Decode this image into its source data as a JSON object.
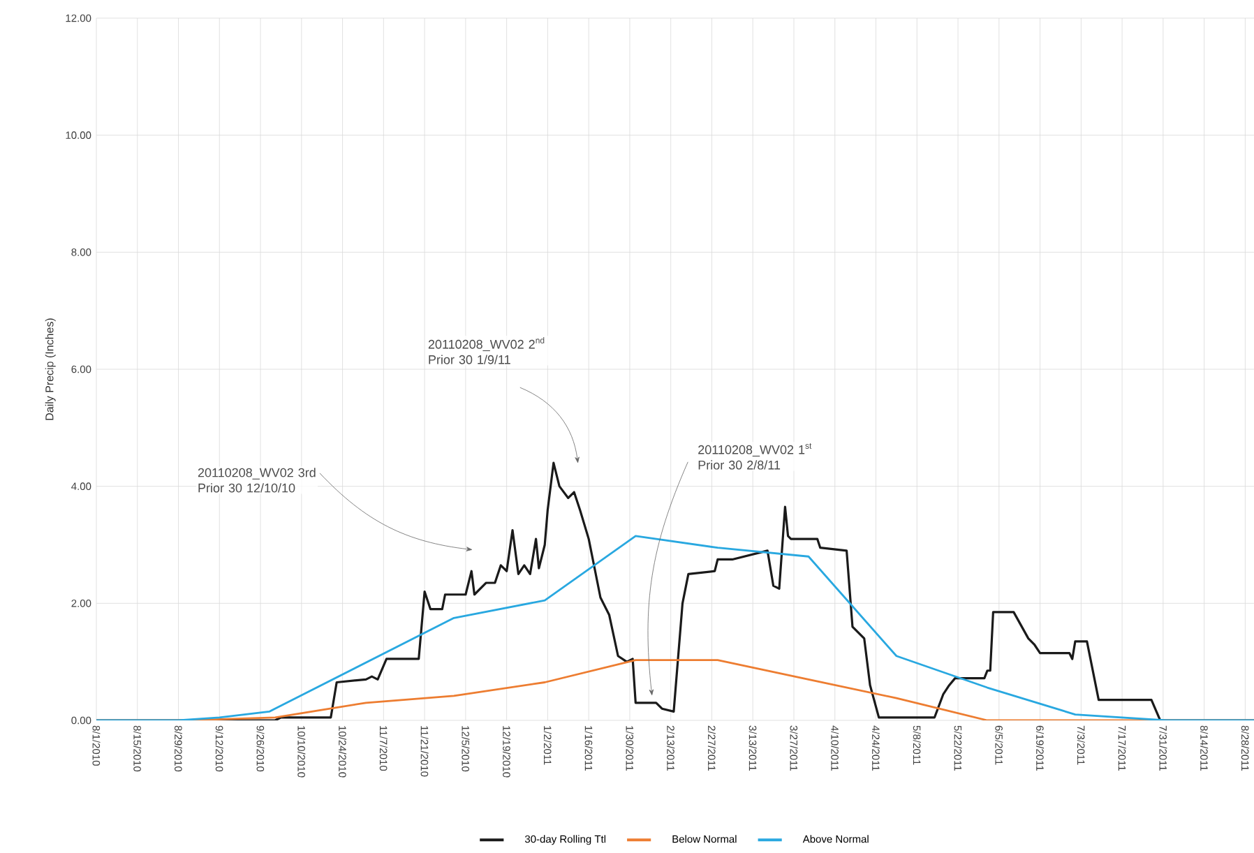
{
  "chart_data": {
    "type": "line",
    "ylabel": "Daily Precip (Inches)",
    "xlim": [
      "2010-08-01",
      "2011-08-31"
    ],
    "ylim": [
      0,
      12
    ],
    "yticks": [
      {
        "value": 0,
        "label": "0.00"
      },
      {
        "value": 2,
        "label": "2.00"
      },
      {
        "value": 4,
        "label": "4.00"
      },
      {
        "value": 6,
        "label": "6.00"
      },
      {
        "value": 8,
        "label": "8.00"
      },
      {
        "value": 10,
        "label": "10.00"
      },
      {
        "value": 12,
        "label": "12.00"
      }
    ],
    "xticks": [
      {
        "value": "2010-08-01",
        "label": "8/1/2010"
      },
      {
        "value": "2010-08-15",
        "label": "8/15/2010"
      },
      {
        "value": "2010-08-29",
        "label": "8/29/2010"
      },
      {
        "value": "2010-09-12",
        "label": "9/12/2010"
      },
      {
        "value": "2010-09-26",
        "label": "9/26/2010"
      },
      {
        "value": "2010-10-10",
        "label": "10/10/2010"
      },
      {
        "value": "2010-10-24",
        "label": "10/24/2010"
      },
      {
        "value": "2010-11-07",
        "label": "11/7/2010"
      },
      {
        "value": "2010-11-21",
        "label": "11/21/2010"
      },
      {
        "value": "2010-12-05",
        "label": "12/5/2010"
      },
      {
        "value": "2010-12-19",
        "label": "12/19/2010"
      },
      {
        "value": "2011-01-02",
        "label": "1/2/2011"
      },
      {
        "value": "2011-01-16",
        "label": "1/16/2011"
      },
      {
        "value": "2011-01-30",
        "label": "1/30/2011"
      },
      {
        "value": "2011-02-13",
        "label": "2/13/2011"
      },
      {
        "value": "2011-02-27",
        "label": "2/27/2011"
      },
      {
        "value": "2011-03-13",
        "label": "3/13/2011"
      },
      {
        "value": "2011-03-27",
        "label": "3/27/2011"
      },
      {
        "value": "2011-04-10",
        "label": "4/10/2011"
      },
      {
        "value": "2011-04-24",
        "label": "4/24/2011"
      },
      {
        "value": "2011-05-08",
        "label": "5/8/2011"
      },
      {
        "value": "2011-05-22",
        "label": "5/22/2011"
      },
      {
        "value": "2011-06-05",
        "label": "6/5/2011"
      },
      {
        "value": "2011-06-19",
        "label": "6/19/2011"
      },
      {
        "value": "2011-07-03",
        "label": "7/3/2011"
      },
      {
        "value": "2011-07-17",
        "label": "7/17/2011"
      },
      {
        "value": "2011-07-31",
        "label": "7/31/2011"
      },
      {
        "value": "2011-08-14",
        "label": "8/14/2011"
      },
      {
        "value": "2011-08-28",
        "label": "8/28/2011"
      }
    ],
    "grid": true,
    "legend": "bottom",
    "marker": "none",
    "line_style": "solid",
    "series": [
      {
        "name": "30-day Rolling Ttl",
        "color": "#1a1a1a",
        "x": [
          "2010-08-01",
          "2010-10-01",
          "2010-10-03",
          "2010-10-20",
          "2010-10-22",
          "2010-11-01",
          "2010-11-03",
          "2010-11-05",
          "2010-11-08",
          "2010-11-19",
          "2010-11-21",
          "2010-11-23",
          "2010-11-27",
          "2010-11-28",
          "2010-12-05",
          "2010-12-07",
          "2010-12-08",
          "2010-12-12",
          "2010-12-15",
          "2010-12-17",
          "2010-12-19",
          "2010-12-21",
          "2010-12-23",
          "2010-12-25",
          "2010-12-27",
          "2010-12-29",
          "2010-12-30",
          "2011-01-01",
          "2011-01-02",
          "2011-01-04",
          "2011-01-06",
          "2011-01-09",
          "2011-01-11",
          "2011-01-13",
          "2011-01-16",
          "2011-01-18",
          "2011-01-20",
          "2011-01-23",
          "2011-01-26",
          "2011-01-29",
          "2011-01-31",
          "2011-02-01",
          "2011-02-08",
          "2011-02-10",
          "2011-02-14",
          "2011-02-17",
          "2011-02-19",
          "2011-02-28",
          "2011-03-01",
          "2011-03-06",
          "2011-03-18",
          "2011-03-20",
          "2011-03-22",
          "2011-03-24",
          "2011-03-25",
          "2011-03-26",
          "2011-04-04",
          "2011-04-05",
          "2011-04-14",
          "2011-04-16",
          "2011-04-20",
          "2011-04-22",
          "2011-04-25",
          "2011-05-14",
          "2011-05-17",
          "2011-05-19",
          "2011-05-21",
          "2011-05-31",
          "2011-06-01",
          "2011-06-02",
          "2011-06-03",
          "2011-06-10",
          "2011-06-15",
          "2011-06-17",
          "2011-06-19",
          "2011-06-29",
          "2011-06-30",
          "2011-07-01",
          "2011-07-05",
          "2011-07-09",
          "2011-07-27",
          "2011-07-30",
          "2011-08-31"
        ],
        "values": [
          0,
          0,
          0.05,
          0.05,
          0.65,
          0.7,
          0.75,
          0.7,
          1.05,
          1.05,
          2.2,
          1.9,
          1.9,
          2.15,
          2.15,
          2.55,
          2.15,
          2.35,
          2.35,
          2.65,
          2.55,
          3.25,
          2.5,
          2.65,
          2.5,
          3.1,
          2.6,
          3.0,
          3.6,
          4.4,
          4.0,
          3.8,
          3.9,
          3.6,
          3.1,
          2.6,
          2.1,
          1.8,
          1.1,
          1.0,
          1.05,
          0.3,
          0.3,
          0.2,
          0.15,
          2.0,
          2.5,
          2.55,
          2.75,
          2.75,
          2.9,
          2.3,
          2.25,
          3.65,
          3.15,
          3.1,
          3.1,
          2.95,
          2.9,
          1.6,
          1.4,
          0.6,
          0.05,
          0.05,
          0.45,
          0.6,
          0.72,
          0.72,
          0.85,
          0.85,
          1.85,
          1.85,
          1.4,
          1.3,
          1.15,
          1.15,
          1.05,
          1.35,
          1.35,
          0.35,
          0.35,
          0.0,
          0.0
        ]
      },
      {
        "name": "Below Normal",
        "color": "#ed7d31",
        "x": [
          "2010-08-01",
          "2010-09-01",
          "2010-10-01",
          "2010-11-01",
          "2010-12-01",
          "2011-01-01",
          "2011-02-01",
          "2011-03-01",
          "2011-04-01",
          "2011-05-01",
          "2011-06-01",
          "2011-07-01",
          "2011-08-01",
          "2011-08-31"
        ],
        "values": [
          0,
          0,
          0.05,
          0.3,
          0.42,
          0.65,
          1.03,
          1.03,
          0.7,
          0.38,
          0,
          0,
          0,
          0
        ]
      },
      {
        "name": "Above Normal",
        "color": "#29a8e0",
        "x": [
          "2010-08-01",
          "2010-08-29",
          "2010-09-12",
          "2010-09-29",
          "2010-12-01",
          "2011-01-01",
          "2011-02-01",
          "2011-03-01",
          "2011-04-01",
          "2011-05-01",
          "2011-06-01",
          "2011-07-01",
          "2011-08-01",
          "2011-08-31"
        ],
        "values": [
          0,
          0,
          0.05,
          0.15,
          1.75,
          2.05,
          3.15,
          2.95,
          2.8,
          1.1,
          0.56,
          0.1,
          0,
          0
        ]
      }
    ],
    "annotations": [
      "20110208_WV02 3rd Prior 30 12/10/10",
      "20110208_WV02 2$^{nd}$ Prior 30 1/9/11",
      "20110208_WV02 1$^{st}$ Prior 30 2/8/11"
    ]
  }
}
